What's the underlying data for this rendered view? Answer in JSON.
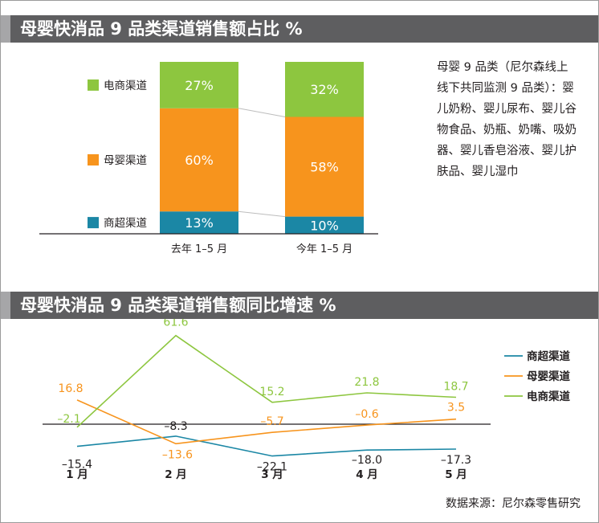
{
  "titles": {
    "share": "母婴快消品 9 品类渠道销售额占比 %",
    "growth": "母婴快消品 9 品类渠道销售额同比增速 %"
  },
  "note": "母婴 9 品类（尼尔森线上线下共同监测 9 品类）：婴儿奶粉、婴儿尿布、婴儿谷物食品、奶瓶、奶嘴、吸奶器、婴儿香皂浴液、婴儿护肤品、婴儿湿巾",
  "source": "数据来源：尼尔森零售研究",
  "colors": {
    "ecommerce": "#8dc63f",
    "maternal": "#f7941d",
    "supermarket": "#1b87a5"
  },
  "chart_data": [
    {
      "type": "bar",
      "stacked": true,
      "title": "母婴快消品 9 品类渠道销售额占比 %",
      "categories": [
        "去年 1–5 月",
        "今年 1–5 月"
      ],
      "series": [
        {
          "name": "商超渠道",
          "values": [
            13,
            10
          ],
          "labels": [
            "13%",
            "10%"
          ]
        },
        {
          "name": "母婴渠道",
          "values": [
            60,
            58
          ],
          "labels": [
            "60%",
            "58%"
          ]
        },
        {
          "name": "电商渠道",
          "values": [
            27,
            32
          ],
          "labels": [
            "27%",
            "32%"
          ]
        }
      ],
      "ylim": [
        0,
        100
      ],
      "legend": "left"
    },
    {
      "type": "line",
      "title": "母婴快消品 9 品类渠道销售额同比增速 %",
      "categories": [
        "1 月",
        "2 月",
        "3 月",
        "4 月",
        "5 月"
      ],
      "series": [
        {
          "name": "商超渠道",
          "values": [
            -15.4,
            -8.3,
            -22.1,
            -18.0,
            -17.3
          ],
          "labels": [
            "–15.4",
            "–8.3",
            "–22.1",
            "–18.0",
            "–17.3"
          ]
        },
        {
          "name": "母婴渠道",
          "values": [
            16.8,
            -13.6,
            -5.7,
            -0.6,
            3.5
          ],
          "labels": [
            "16.8",
            "–13.6",
            "–5.7",
            "–0.6",
            "3.5"
          ]
        },
        {
          "name": "电商渠道",
          "values": [
            -2.1,
            61.6,
            15.2,
            21.8,
            18.7
          ],
          "labels": [
            "–2.1",
            "61.6",
            "15.2",
            "21.8",
            "18.7"
          ]
        }
      ],
      "legend": "top-right"
    }
  ]
}
